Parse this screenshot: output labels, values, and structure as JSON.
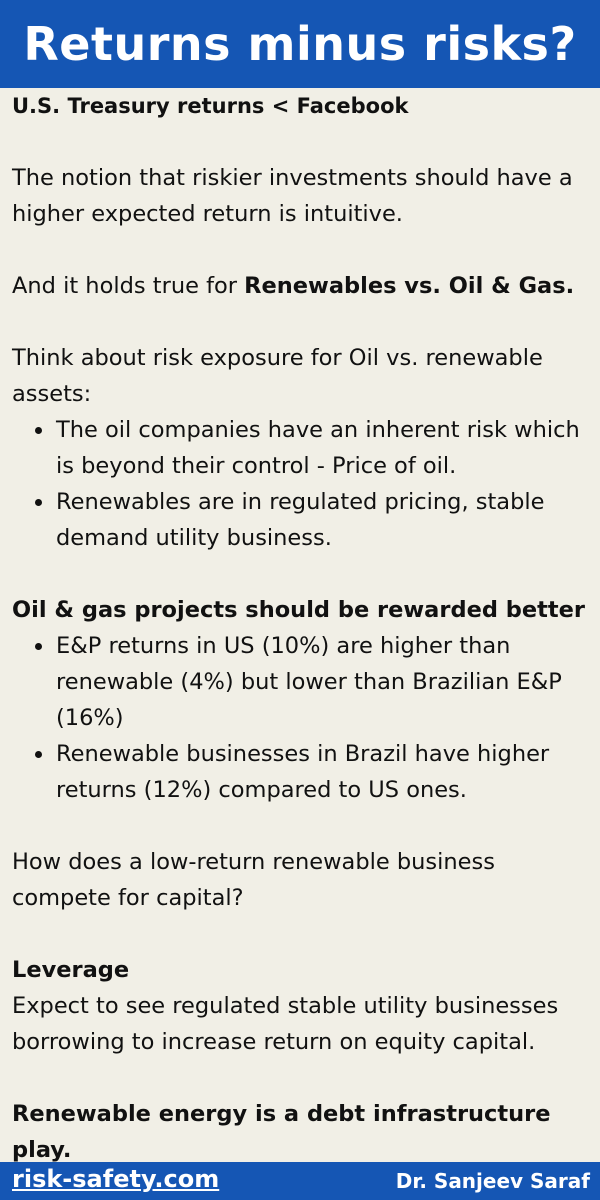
{
  "header": {
    "title": "Returns minus risks?"
  },
  "content": {
    "subtitle": "U.S. Treasury returns <  Facebook",
    "intro": "The notion that riskier investments should have a higher expected return is intuitive.",
    "holds_prefix": "And it holds true for ",
    "holds_bold": "Renewables vs. Oil & Gas.",
    "think": "Think about risk exposure for Oil vs. renewable assets:",
    "risk_bullets": [
      "The oil companies have an inherent risk which is beyond their control - Price of oil.",
      "Renewables are in regulated pricing, stable demand utility business."
    ],
    "oil_heading": "Oil & gas projects should be rewarded better",
    "oil_bullets": [
      "E&P returns in US (10%) are higher than renewable (4%) but lower than Brazilian E&P (16%)",
      "Renewable businesses in Brazil have higher returns (12%) compared to US ones."
    ],
    "question": "How does a low-return renewable business compete for capital?",
    "leverage_heading": "Leverage",
    "leverage_text": "Expect to see regulated stable utility businesses borrowing to increase return on equity capital.",
    "conclusion": "Renewable energy is a debt infrastructure play."
  },
  "footer": {
    "website": "risk-safety.com",
    "author": "Dr. Sanjeev Saraf"
  }
}
